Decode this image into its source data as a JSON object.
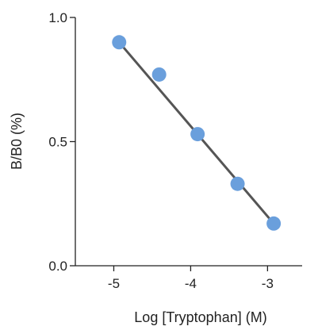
{
  "chart_data": {
    "type": "scatter",
    "title": "",
    "xlabel": "Log [Tryptophan] (M)",
    "ylabel": "B/B0 (%)",
    "xlim": [
      -5.5,
      -2.55
    ],
    "ylim": [
      0.0,
      1.0
    ],
    "x_ticks": [
      -5,
      -4,
      -3
    ],
    "x_tick_labels": [
      "-5",
      "-4",
      "-3"
    ],
    "y_ticks": [
      0.0,
      0.5,
      1.0
    ],
    "y_tick_labels": [
      "0.0",
      "0.5",
      "1.0"
    ],
    "grid": false,
    "legend": "none",
    "series": [
      {
        "x": [
          -4.93,
          -4.41,
          -3.91,
          -3.39,
          -2.92
        ],
        "y": [
          0.9,
          0.77,
          0.53,
          0.33,
          0.17
        ]
      }
    ],
    "fit_line": {
      "x": [
        -4.93,
        -2.92
      ],
      "y": [
        0.9,
        0.17
      ]
    },
    "colors": {
      "point": "#6a9fdc",
      "line": "#555555",
      "axis": "#222222"
    }
  }
}
